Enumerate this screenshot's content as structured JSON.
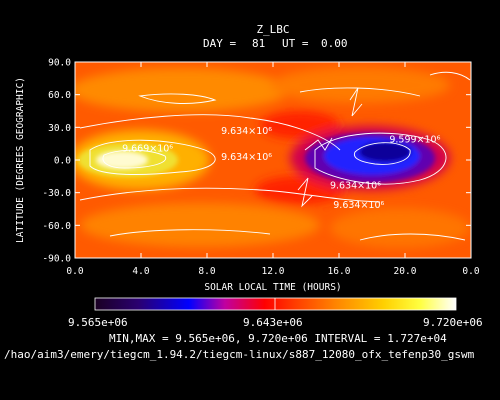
{
  "chart_data": {
    "type": "heatmap",
    "title": "Z_LBC",
    "subtitle": {
      "day_label": "DAY =",
      "day": "81",
      "ut_label": "UT =",
      "ut": "0.00"
    },
    "xlabel": "SOLAR LOCAL TIME (HOURS)",
    "ylabel": "LATITUDE (DEGREES GEOGRAPHIC)",
    "xlim": [
      0,
      24
    ],
    "ylim": [
      -90,
      90
    ],
    "x_ticks": [
      "0.0",
      "4.0",
      "8.0",
      "12.0",
      "16.0",
      "20.0",
      "0.0"
    ],
    "y_ticks": [
      "90.0",
      "60.0",
      "30.0",
      "0.0",
      "-30.0",
      "-60.0",
      "-90.0"
    ],
    "contour_labels": [
      {
        "text": "9.634×10⁶",
        "x": 10.4,
        "y": 24
      },
      {
        "text": "9.669×10⁶",
        "x": 4.4,
        "y": 8
      },
      {
        "text": "9.634×10⁶",
        "x": 10.4,
        "y": 0
      },
      {
        "text": "9.599×10⁶",
        "x": 20.6,
        "y": 16
      },
      {
        "text": "9.634×10⁶",
        "x": 17.0,
        "y": -26
      },
      {
        "text": "9.634×10⁶",
        "x": 17.2,
        "y": -44
      }
    ],
    "colorbar": {
      "min_label": "9.565e+06",
      "mid_label": "9.643e+06",
      "max_label": "9.720e+06"
    },
    "stats": {
      "minmax_label": "MIN,MAX =",
      "min": "9.565e+06",
      "max": "9.720e+06",
      "interval_label": "INTERVAL =",
      "interval": "1.727e+04"
    },
    "file_path": "/hao/aim3/emery/tiegcm_1.94.2/tiegcm-linux/s887_12080_ofx_tefenp30_gswm"
  }
}
